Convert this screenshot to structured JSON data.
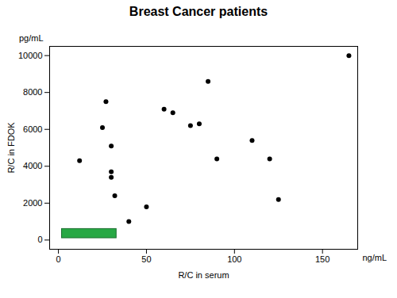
{
  "chart_data": {
    "type": "scatter",
    "title": "Breast Cancer patients",
    "xlabel": "R/C in serum",
    "ylabel": "R/C in FDOK",
    "annotations": [
      "pg/mL",
      "ng/mL"
    ],
    "x": [
      12,
      25,
      27,
      30,
      30,
      30,
      32,
      40,
      50,
      60,
      65,
      75,
      80,
      85,
      90,
      110,
      120,
      125,
      165
    ],
    "values": [
      4300,
      6100,
      7500,
      5100,
      3700,
      3400,
      2400,
      1000,
      1800,
      7100,
      6900,
      6200,
      6300,
      8600,
      4400,
      5400,
      4400,
      2200,
      10000
    ],
    "color": "#000000",
    "rect": {
      "x1": 2,
      "x2": 33,
      "y1": 100,
      "y2": 600,
      "color": "#27a844",
      "edge_color": "#1a6e2e"
    },
    "xlim": [
      -5,
      170
    ],
    "ylim": [
      -500,
      10500
    ],
    "xticks": [
      0,
      50,
      100,
      150
    ],
    "yticks": [
      0,
      2000,
      4000,
      6000,
      8000,
      10000
    ],
    "grid": false
  }
}
